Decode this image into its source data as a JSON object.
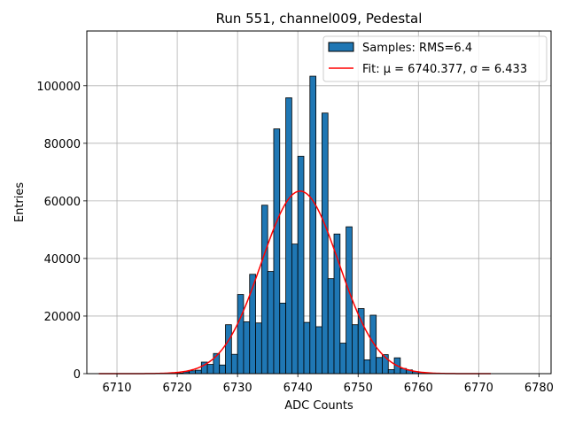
{
  "colors": {
    "bar_fill": "#1f77b4",
    "bar_edge": "#000000",
    "fit_line": "#ff0000",
    "grid": "#b0b0b0"
  },
  "chart_data": {
    "type": "bar",
    "title": "Run 551, channel009, Pedestal",
    "xlabel": "ADC Counts",
    "ylabel": "Entries",
    "xlim": [
      6705,
      6782
    ],
    "ylim": [
      0,
      119000
    ],
    "grid": true,
    "legend_position": "top-right",
    "x_ticks": [
      6710,
      6720,
      6730,
      6740,
      6750,
      6760,
      6770,
      6780
    ],
    "y_ticks": [
      0,
      20000,
      40000,
      60000,
      80000,
      100000
    ],
    "bin_width": 1,
    "series": [
      {
        "name": "Samples: RMS=6.4",
        "kind": "histogram",
        "bin_starts": [
          6720,
          6721,
          6722,
          6723,
          6724,
          6725,
          6726,
          6727,
          6728,
          6729,
          6730,
          6731,
          6732,
          6733,
          6734,
          6735,
          6736,
          6737,
          6738,
          6739,
          6740,
          6741,
          6742,
          6743,
          6744,
          6745,
          6746,
          6747,
          6748,
          6749,
          6750,
          6751,
          6752,
          6753,
          6754,
          6755,
          6756,
          6757,
          6758,
          6759,
          6760,
          6761,
          6762
        ],
        "values": [
          200,
          600,
          1000,
          1200,
          4000,
          3200,
          7000,
          3000,
          17000,
          6700,
          27500,
          18000,
          34500,
          17600,
          58500,
          35500,
          85000,
          24500,
          95800,
          45000,
          75500,
          17800,
          103300,
          16300,
          90500,
          33000,
          48500,
          10600,
          51000,
          17000,
          22600,
          4800,
          20300,
          5600,
          6600,
          1400,
          5500,
          1800,
          1300,
          700,
          500,
          200,
          100
        ]
      },
      {
        "name": "Fit: μ = 6740.377, σ = 6.433",
        "kind": "gaussian",
        "mu": 6740.377,
        "sigma": 6.433,
        "amplitude": 63400,
        "x_range": [
          6707,
          6772
        ]
      }
    ]
  }
}
